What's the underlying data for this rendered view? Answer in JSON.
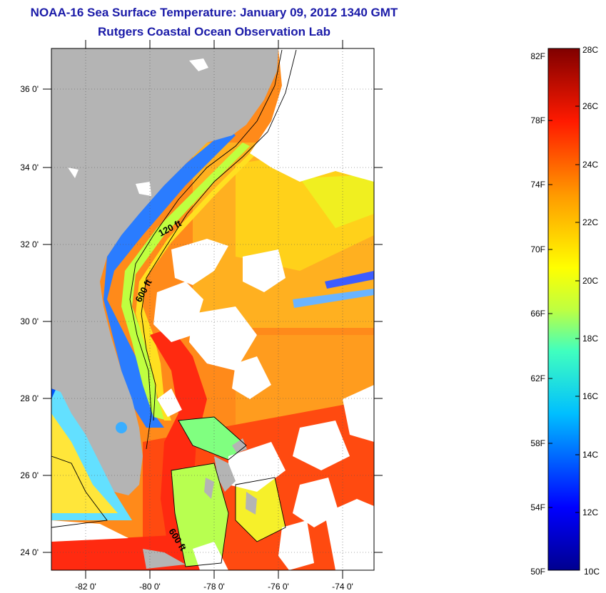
{
  "title_line1": "NOAA-16 Sea Surface Temperature:  January 09, 2012 1340 GMT",
  "title_line2": "Rutgers Coastal Ocean Observation Lab",
  "map": {
    "lat_labels": [
      "36 0'",
      "34 0'",
      "32 0'",
      "30 0'",
      "28 0'",
      "26 0'",
      "24 0'"
    ],
    "lon_labels": [
      "-82 0'",
      "-80 0'",
      "-78 0'",
      "-76 0'",
      "-74 0'"
    ],
    "contour_labels": [
      "120 ft",
      "600 ft",
      "600 ft"
    ]
  },
  "colorbar": {
    "fahrenheit_labels": [
      "82F",
      "78F",
      "74F",
      "70F",
      "66F",
      "62F",
      "58F",
      "54F",
      "50F"
    ],
    "celsius_labels": [
      "28C",
      "26C",
      "24C",
      "22C",
      "20C",
      "18C",
      "16C",
      "14C",
      "12C",
      "10C"
    ],
    "range_celsius": [
      10,
      28
    ]
  },
  "colors": {
    "land": "#b4b4b4",
    "cloud": "#ffffff",
    "title": "#1a1aa8"
  }
}
